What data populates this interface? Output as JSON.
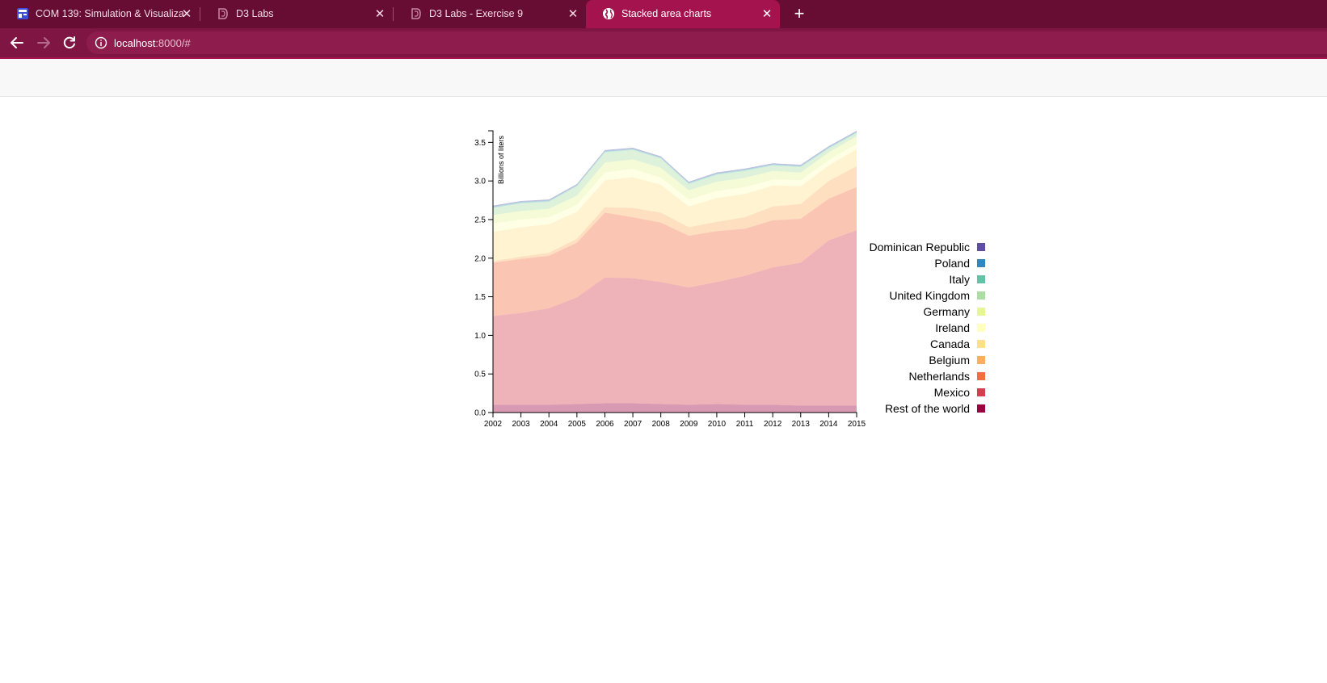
{
  "browser": {
    "tabs": [
      {
        "title": "COM 139: Simulation & Visualiza",
        "favicon": "calendar-icon",
        "active": false
      },
      {
        "title": "D3 Labs",
        "favicon": "d3-icon",
        "active": false
      },
      {
        "title": "D3 Labs - Exercise 9",
        "favicon": "d3-icon",
        "active": false
      },
      {
        "title": "Stacked area charts",
        "favicon": "globe-icon",
        "active": true
      }
    ],
    "url_host": "localhost",
    "url_path": ":8000/#",
    "colors": {
      "tabstrip": "#670c33",
      "active_tab": "#a5134f",
      "toolbar": "#7e1543"
    }
  },
  "chart_data": {
    "type": "area",
    "stacked": true,
    "ylabel": "Billions of liters",
    "ylim": [
      0,
      3.65
    ],
    "yticks": [
      0.0,
      0.5,
      1.0,
      1.5,
      2.0,
      2.5,
      3.0,
      3.5
    ],
    "x": [
      2002,
      2003,
      2004,
      2005,
      2006,
      2007,
      2008,
      2009,
      2010,
      2011,
      2012,
      2013,
      2014,
      2015
    ],
    "legend_position": "right",
    "series": [
      {
        "name": "Rest of the world",
        "color": "#9e0142",
        "values": [
          0.1,
          0.1,
          0.1,
          0.11,
          0.12,
          0.12,
          0.11,
          0.1,
          0.11,
          0.1,
          0.1,
          0.09,
          0.09,
          0.09
        ]
      },
      {
        "name": "Mexico",
        "color": "#d53e4f",
        "values": [
          1.15,
          1.19,
          1.25,
          1.38,
          1.63,
          1.62,
          1.58,
          1.52,
          1.58,
          1.67,
          1.78,
          1.85,
          2.14,
          2.27
        ]
      },
      {
        "name": "Netherlands",
        "color": "#f46d43",
        "values": [
          0.69,
          0.7,
          0.68,
          0.71,
          0.84,
          0.79,
          0.77,
          0.67,
          0.66,
          0.61,
          0.61,
          0.57,
          0.54,
          0.56
        ]
      },
      {
        "name": "Belgium",
        "color": "#fdae61",
        "values": [
          0.02,
          0.03,
          0.04,
          0.05,
          0.07,
          0.12,
          0.13,
          0.11,
          0.12,
          0.15,
          0.18,
          0.19,
          0.23,
          0.27
        ]
      },
      {
        "name": "Canada",
        "color": "#fee08b",
        "values": [
          0.38,
          0.38,
          0.37,
          0.35,
          0.35,
          0.4,
          0.36,
          0.27,
          0.31,
          0.3,
          0.27,
          0.23,
          0.2,
          0.22
        ]
      },
      {
        "name": "Ireland",
        "color": "#ffffbf",
        "values": [
          0.11,
          0.1,
          0.09,
          0.09,
          0.1,
          0.11,
          0.09,
          0.09,
          0.09,
          0.09,
          0.08,
          0.08,
          0.07,
          0.07
        ]
      },
      {
        "name": "Germany",
        "color": "#e6f598",
        "values": [
          0.11,
          0.11,
          0.11,
          0.12,
          0.13,
          0.12,
          0.13,
          0.12,
          0.12,
          0.12,
          0.11,
          0.1,
          0.1,
          0.1
        ]
      },
      {
        "name": "United Kingdom",
        "color": "#abdda4",
        "values": [
          0.09,
          0.1,
          0.09,
          0.12,
          0.13,
          0.12,
          0.12,
          0.08,
          0.09,
          0.09,
          0.07,
          0.07,
          0.05,
          0.04
        ]
      },
      {
        "name": "Italy",
        "color": "#66c2a5",
        "values": [
          0.01,
          0.01,
          0.01,
          0.01,
          0.01,
          0.01,
          0.01,
          0.01,
          0.01,
          0.01,
          0.01,
          0.01,
          0.01,
          0.01
        ]
      },
      {
        "name": "Poland",
        "color": "#3288bd",
        "values": [
          0.01,
          0.01,
          0.01,
          0.01,
          0.01,
          0.01,
          0.01,
          0.01,
          0.01,
          0.01,
          0.01,
          0.01,
          0.01,
          0.01
        ]
      },
      {
        "name": "Dominican Republic",
        "color": "#5e4fa2",
        "values": [
          0.01,
          0.01,
          0.01,
          0.01,
          0.01,
          0.01,
          0.01,
          0.01,
          0.01,
          0.01,
          0.01,
          0.01,
          0.01,
          0.01
        ]
      }
    ]
  }
}
